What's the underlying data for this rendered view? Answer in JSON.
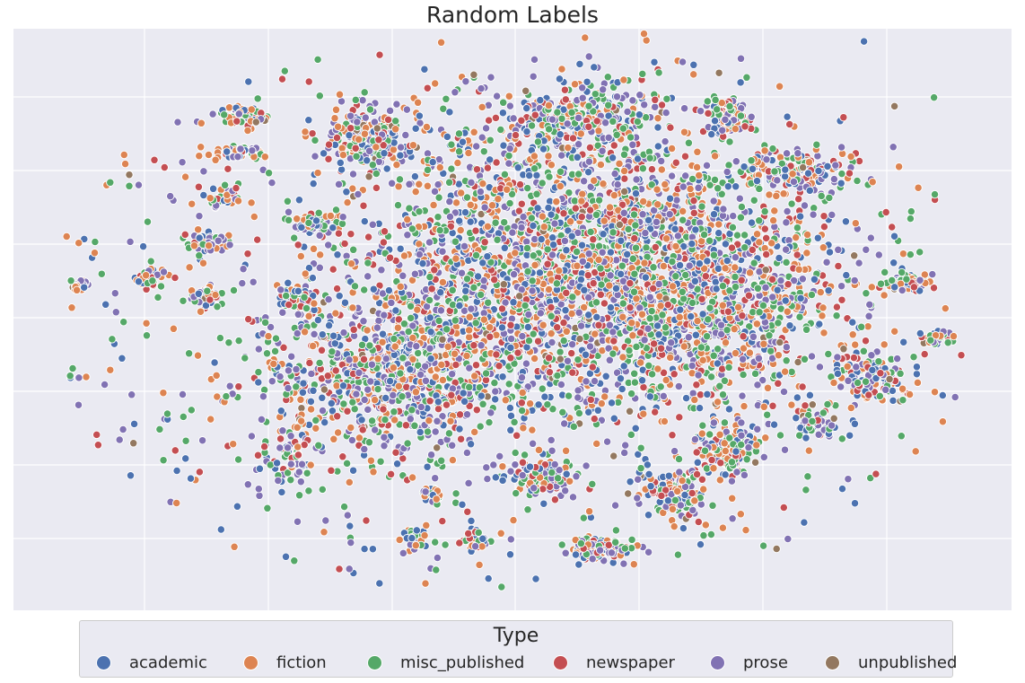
{
  "chart_data": {
    "type": "scatter",
    "title": "Random Labels",
    "xlabel": "",
    "ylabel": "",
    "x_tick_labels": "not shown",
    "y_tick_labels": "not shown",
    "grid": true,
    "legend_placement": "bottom-center",
    "legend_title": "Type",
    "series": [
      {
        "name": "academic",
        "color": "#4c72b0"
      },
      {
        "name": "fiction",
        "color": "#dd8452"
      },
      {
        "name": "misc_published",
        "color": "#55a868"
      },
      {
        "name": "newspaper",
        "color": "#c44e52"
      },
      {
        "name": "prose",
        "color": "#8172b3"
      },
      {
        "name": "unpublished",
        "color": "#937860"
      }
    ],
    "plot_background": "#eaeaf2",
    "grid_color": "#ffffff"
  }
}
